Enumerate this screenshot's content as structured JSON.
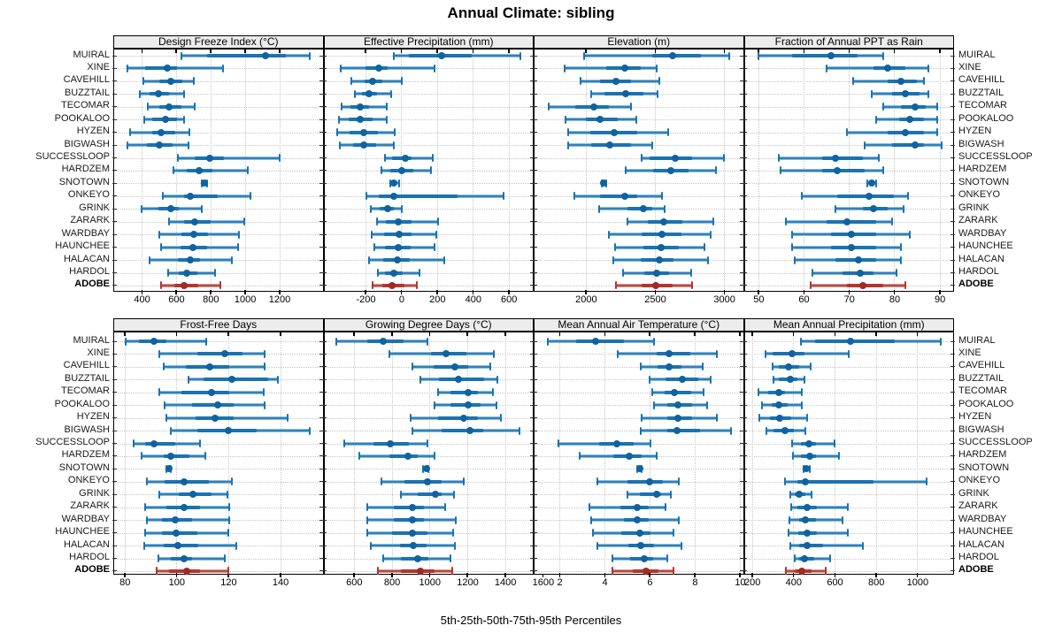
{
  "title": "Annual Climate: sibling",
  "xlabel": "5th-25th-50th-75th-95th Percentiles",
  "percentiles": [
    5,
    25,
    50,
    75,
    95
  ],
  "sites": [
    "MUIRAL",
    "XINE",
    "CAVEHILL",
    "BUZZTAIL",
    "TECOMAR",
    "POOKALOO",
    "HYZEN",
    "BIGWASH",
    "SUCCESSLOOP",
    "HARDZEM",
    "SNOTOWN",
    "ONKEYO",
    "GRINK",
    "ZARARK",
    "WARDBAY",
    "HAUNCHEE",
    "HALACAN",
    "HARDOL",
    "ADOBE"
  ],
  "highlight_site": "ADOBE",
  "colors": {
    "series": "#1a72b2",
    "series_light": "#8cbcdd",
    "series_dot": "#10639e",
    "highlight": "#b5342f",
    "highlight_light": "#d89a93",
    "highlight_dot": "#9e2b26",
    "grid": "#c6c6c6",
    "strip_bg": "#ececec",
    "border": "#000000"
  },
  "chart_data": [
    {
      "type": "percentile-dotplot",
      "title": "Design Freeze Index (°C)",
      "axis": {
        "min": 240,
        "max": 1447,
        "ticks": [
          400,
          600,
          800,
          1000,
          1200
        ]
      },
      "values": [
        [
          630,
          780,
          1120,
          1240,
          1380
        ],
        [
          315,
          420,
          550,
          605,
          875
        ],
        [
          410,
          500,
          570,
          635,
          705
        ],
        [
          390,
          445,
          495,
          560,
          645
        ],
        [
          435,
          500,
          560,
          630,
          710
        ],
        [
          415,
          460,
          540,
          605,
          645
        ],
        [
          335,
          460,
          515,
          595,
          680
        ],
        [
          315,
          430,
          505,
          580,
          670
        ],
        [
          610,
          710,
          795,
          880,
          1200
        ],
        [
          585,
          660,
          735,
          810,
          1015
        ],
        [
          750,
          758,
          765,
          772,
          780
        ],
        [
          525,
          645,
          685,
          840,
          1035
        ],
        [
          400,
          495,
          570,
          615,
          750
        ],
        [
          560,
          645,
          710,
          800,
          995
        ],
        [
          505,
          630,
          705,
          785,
          965
        ],
        [
          515,
          625,
          700,
          780,
          960
        ],
        [
          445,
          610,
          685,
          740,
          925
        ],
        [
          555,
          615,
          660,
          725,
          825
        ],
        [
          515,
          590,
          645,
          730,
          860
        ]
      ]
    },
    {
      "type": "percentile-dotplot",
      "title": "Effective Precipitation (mm)",
      "axis": {
        "min": -430,
        "max": 730,
        "ticks": [
          -200,
          0,
          200,
          400,
          600
        ]
      },
      "values": [
        [
          -40,
          40,
          225,
          395,
          665
        ],
        [
          -340,
          -200,
          -128,
          -75,
          185
        ],
        [
          -280,
          -205,
          -160,
          -105,
          5
        ],
        [
          -260,
          -220,
          -180,
          -135,
          -55
        ],
        [
          -335,
          -285,
          -230,
          -180,
          -80
        ],
        [
          -350,
          -295,
          -230,
          -160,
          -80
        ],
        [
          -360,
          -290,
          -210,
          -130,
          -35
        ],
        [
          -345,
          -270,
          -210,
          -140,
          -40
        ],
        [
          -90,
          -50,
          25,
          55,
          175
        ],
        [
          -110,
          -60,
          5,
          65,
          165
        ],
        [
          -60,
          -50,
          -42,
          -25,
          -12
        ],
        [
          -195,
          -125,
          -40,
          315,
          570
        ],
        [
          -170,
          -120,
          -78,
          -40,
          5
        ],
        [
          -135,
          -88,
          -15,
          55,
          205
        ],
        [
          -165,
          -95,
          -10,
          55,
          195
        ],
        [
          -150,
          -92,
          -15,
          50,
          185
        ],
        [
          -180,
          -100,
          -22,
          45,
          240
        ],
        [
          -132,
          -92,
          -42,
          8,
          100
        ],
        [
          -158,
          -108,
          -52,
          18,
          85
        ]
      ]
    },
    {
      "type": "percentile-dotplot",
      "title": "Elevation (m)",
      "axis": {
        "min": 1630,
        "max": 3130,
        "ticks": [
          2000,
          2500,
          3000
        ]
      },
      "values": [
        [
          1990,
          2480,
          2625,
          2830,
          3040
        ],
        [
          1845,
          2145,
          2280,
          2395,
          2510
        ],
        [
          1960,
          2105,
          2220,
          2325,
          2530
        ],
        [
          2040,
          2135,
          2290,
          2415,
          2520
        ],
        [
          1730,
          1925,
          2060,
          2165,
          2330
        ],
        [
          1855,
          2000,
          2105,
          2230,
          2365
        ],
        [
          1875,
          2030,
          2205,
          2375,
          2595
        ],
        [
          1870,
          2040,
          2175,
          2325,
          2480
        ],
        [
          2405,
          2460,
          2645,
          2770,
          3000
        ],
        [
          2290,
          2490,
          2615,
          2740,
          2940
        ],
        [
          2115,
          2122,
          2130,
          2140,
          2148
        ],
        [
          1915,
          2105,
          2280,
          2375,
          2550
        ],
        [
          2095,
          2300,
          2415,
          2480,
          2570
        ],
        [
          2300,
          2450,
          2565,
          2700,
          2925
        ],
        [
          2165,
          2405,
          2550,
          2690,
          2905
        ],
        [
          2210,
          2415,
          2545,
          2675,
          2855
        ],
        [
          2200,
          2395,
          2530,
          2635,
          2885
        ],
        [
          2270,
          2425,
          2515,
          2605,
          2760
        ],
        [
          2220,
          2405,
          2505,
          2625,
          2770
        ]
      ]
    },
    {
      "type": "percentile-dotplot",
      "title": "Fraction of Annual PPT as Rain",
      "axis": {
        "min": 47,
        "max": 92.8,
        "ticks": [
          50,
          60,
          70,
          80,
          90
        ]
      },
      "values": [
        [
          50,
          57.5,
          66,
          72,
          77.5
        ],
        [
          65,
          75.5,
          78.5,
          82.5,
          87.5
        ],
        [
          71,
          78.5,
          81.5,
          85,
          86.5
        ],
        [
          75,
          79.5,
          82.5,
          85.5,
          87.5
        ],
        [
          77.5,
          81.5,
          84.5,
          87,
          89.5
        ],
        [
          76,
          81,
          83.5,
          86.5,
          89.5
        ],
        [
          69.5,
          78.5,
          82.5,
          86.5,
          89.5
        ],
        [
          73.5,
          79.5,
          84.5,
          86.5,
          90.5
        ],
        [
          54.5,
          64,
          67,
          73,
          76.5
        ],
        [
          55,
          64,
          67.5,
          73.5,
          77.5
        ],
        [
          74,
          74.5,
          75,
          75.5,
          76
        ],
        [
          59.5,
          67.5,
          74.5,
          80,
          83
        ],
        [
          67,
          73,
          75.5,
          78.5,
          82
        ],
        [
          56,
          65,
          69.5,
          76,
          79.5
        ],
        [
          57.5,
          66,
          70.5,
          76,
          83.5
        ],
        [
          57.5,
          66,
          70.5,
          76,
          81.5
        ],
        [
          58,
          67,
          72,
          76,
          81.5
        ],
        [
          62,
          68.5,
          72.5,
          75.5,
          80.5
        ],
        [
          61.5,
          69.5,
          73,
          77.5,
          82.5
        ]
      ]
    },
    {
      "type": "percentile-dotplot",
      "title": "Frost-Free Days",
      "axis": {
        "min": 76,
        "max": 156,
        "ticks": [
          80,
          100,
          120,
          140
        ]
      },
      "values": [
        [
          80.5,
          85.5,
          91.5,
          96,
          111.5
        ],
        [
          93.5,
          108,
          118.5,
          125.5,
          134
        ],
        [
          95,
          103.5,
          113,
          120.5,
          134
        ],
        [
          104.5,
          110.5,
          121.5,
          135.5,
          139
        ],
        [
          93.5,
          102,
          113.5,
          120.5,
          133.5
        ],
        [
          95.5,
          106,
          116,
          122,
          134
        ],
        [
          96,
          107.5,
          115,
          122,
          143
        ],
        [
          98,
          108,
          120,
          131,
          151.5
        ],
        [
          83.5,
          88,
          91.5,
          99.5,
          109
        ],
        [
          86.5,
          95,
          98,
          105,
          111
        ],
        [
          96,
          96.5,
          97,
          97.5,
          98
        ],
        [
          88.5,
          95.5,
          103,
          112.5,
          121.5
        ],
        [
          93.5,
          101,
          106.5,
          113.5,
          119.5
        ],
        [
          88,
          96,
          103,
          109,
          120.5
        ],
        [
          88.5,
          94.5,
          99.5,
          106,
          120.5
        ],
        [
          88,
          94.5,
          100,
          108,
          120
        ],
        [
          87.5,
          95,
          100.5,
          108.5,
          123
        ],
        [
          93,
          98,
          103,
          106,
          118.5
        ],
        [
          92.5,
          97,
          104,
          109,
          120
        ]
      ]
    },
    {
      "type": "percentile-dotplot",
      "title": "Growing Degree Days (°C)",
      "axis": {
        "min": 444,
        "max": 1542,
        "ticks": [
          600,
          800,
          1000,
          1200,
          1400,
          1600
        ]
      },
      "values": [
        [
          505,
          670,
          755,
          865,
          990
        ],
        [
          790,
          1010,
          1090,
          1195,
          1340
        ],
        [
          910,
          1020,
          1135,
          1205,
          1320
        ],
        [
          950,
          1050,
          1155,
          1290,
          1360
        ],
        [
          1045,
          1110,
          1205,
          1255,
          1335
        ],
        [
          1025,
          1110,
          1205,
          1270,
          1355
        ],
        [
          900,
          1045,
          1180,
          1255,
          1380
        ],
        [
          910,
          1065,
          1215,
          1285,
          1475
        ],
        [
          550,
          705,
          795,
          890,
          990
        ],
        [
          630,
          790,
          885,
          940,
          1025
        ],
        [
          965,
          975,
          985,
          990,
          995
        ],
        [
          745,
          870,
          990,
          1065,
          1180
        ],
        [
          850,
          940,
          1030,
          1065,
          1130
        ],
        [
          670,
          810,
          910,
          970,
          1085
        ],
        [
          670,
          810,
          910,
          970,
          1140
        ],
        [
          670,
          800,
          910,
          990,
          1125
        ],
        [
          690,
          845,
          915,
          985,
          1135
        ],
        [
          755,
          850,
          940,
          995,
          1110
        ],
        [
          725,
          850,
          950,
          1025,
          1120
        ]
      ]
    },
    {
      "type": "percentile-dotplot",
      "title": "Mean Annual Air Temperature (°C)",
      "axis": {
        "min": 0.9,
        "max": 10.1,
        "ticks": [
          2,
          4,
          6,
          8,
          10
        ]
      },
      "values": [
        [
          1.5,
          2.75,
          3.6,
          4.85,
          6.2
        ],
        [
          4.6,
          6.3,
          6.85,
          7.8,
          9.0
        ],
        [
          5.6,
          6.35,
          6.85,
          7.4,
          8.35
        ],
        [
          6.0,
          6.7,
          7.45,
          8.15,
          8.7
        ],
        [
          6.1,
          6.65,
          7.1,
          7.85,
          8.4
        ],
        [
          6.2,
          6.8,
          7.25,
          7.9,
          8.55
        ],
        [
          5.65,
          6.8,
          7.25,
          7.9,
          9.0
        ],
        [
          5.6,
          6.8,
          7.2,
          8.25,
          9.6
        ],
        [
          1.95,
          3.75,
          4.55,
          5.3,
          6.05
        ],
        [
          2.9,
          4.4,
          5.1,
          5.65,
          6.3
        ],
        [
          5.45,
          5.5,
          5.55,
          5.6,
          5.65
        ],
        [
          3.7,
          5.0,
          6.0,
          6.6,
          7.3
        ],
        [
          5.0,
          5.55,
          6.3,
          6.5,
          6.95
        ],
        [
          3.35,
          4.7,
          5.45,
          5.95,
          6.7
        ],
        [
          3.4,
          4.85,
          5.45,
          5.95,
          7.3
        ],
        [
          3.5,
          4.75,
          5.55,
          6.05,
          7.05
        ],
        [
          3.7,
          5.05,
          5.6,
          6.2,
          7.4
        ],
        [
          4.35,
          5.15,
          5.75,
          6.15,
          6.8
        ],
        [
          4.35,
          5.25,
          5.85,
          6.4,
          7.05
        ]
      ]
    },
    {
      "type": "percentile-dotplot",
      "title": "Mean Annual Precipitation (mm)",
      "axis": {
        "min": 165,
        "max": 1170,
        "ticks": [
          200,
          400,
          600,
          800,
          1000
        ]
      },
      "values": [
        [
          435,
          505,
          675,
          890,
          1115
        ],
        [
          265,
          300,
          395,
          455,
          670
        ],
        [
          300,
          330,
          375,
          430,
          485
        ],
        [
          305,
          330,
          385,
          420,
          455
        ],
        [
          230,
          280,
          330,
          360,
          440
        ],
        [
          250,
          295,
          330,
          375,
          440
        ],
        [
          235,
          285,
          335,
          390,
          465
        ],
        [
          270,
          305,
          360,
          405,
          460
        ],
        [
          395,
          435,
          475,
          510,
          600
        ],
        [
          400,
          435,
          480,
          510,
          620
        ],
        [
          450,
          455,
          462,
          470,
          478
        ],
        [
          360,
          420,
          460,
          790,
          1045
        ],
        [
          385,
          405,
          430,
          460,
          490
        ],
        [
          390,
          420,
          465,
          515,
          665
        ],
        [
          380,
          430,
          460,
          510,
          640
        ],
        [
          375,
          425,
          465,
          515,
          665
        ],
        [
          385,
          430,
          465,
          545,
          735
        ],
        [
          405,
          430,
          455,
          500,
          580
        ],
        [
          365,
          405,
          440,
          490,
          555
        ]
      ]
    }
  ]
}
